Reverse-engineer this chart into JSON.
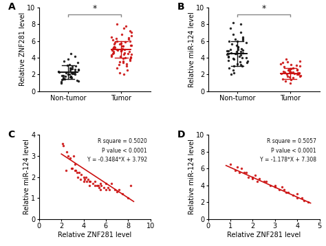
{
  "panel_A": {
    "non_tumor_y": [
      1.0,
      1.1,
      1.2,
      1.3,
      1.4,
      1.5,
      1.5,
      1.6,
      1.6,
      1.7,
      1.7,
      1.8,
      1.8,
      1.9,
      1.9,
      2.0,
      2.0,
      2.0,
      2.1,
      2.1,
      2.2,
      2.2,
      2.3,
      2.3,
      2.4,
      2.4,
      2.5,
      2.5,
      2.6,
      2.6,
      2.7,
      2.7,
      2.8,
      2.9,
      3.0,
      3.1,
      3.2,
      3.4,
      3.6,
      3.8,
      4.2,
      4.5
    ],
    "non_tumor_mean": 2.3,
    "non_tumor_sd_low": 1.5,
    "non_tumor_sd_high": 3.1,
    "tumor_y": [
      2.0,
      2.2,
      2.5,
      2.8,
      3.0,
      3.2,
      3.3,
      3.4,
      3.5,
      3.6,
      3.7,
      3.8,
      3.9,
      4.0,
      4.0,
      4.1,
      4.2,
      4.2,
      4.3,
      4.4,
      4.4,
      4.5,
      4.5,
      4.6,
      4.6,
      4.7,
      4.7,
      4.8,
      4.8,
      4.9,
      4.9,
      5.0,
      5.0,
      5.0,
      5.1,
      5.1,
      5.2,
      5.2,
      5.3,
      5.4,
      5.4,
      5.5,
      5.5,
      5.6,
      5.6,
      5.7,
      5.8,
      5.9,
      6.0,
      6.0,
      6.1,
      6.2,
      6.3,
      6.4,
      6.5,
      6.6,
      6.8,
      7.0,
      7.2,
      7.5,
      7.8,
      8.0
    ],
    "tumor_mean": 5.0,
    "tumor_sd_low": 4.0,
    "tumor_sd_high": 6.0,
    "ylabel": "Relative ZNF281 level",
    "ylim": [
      0,
      10
    ],
    "yticks": [
      0,
      2,
      4,
      6,
      8,
      10
    ],
    "xtick_labels": [
      "Non-tumor",
      "Tumor"
    ],
    "sig_bar_y": 9.2,
    "label": "A"
  },
  "panel_B": {
    "non_tumor_y": [
      2.0,
      2.2,
      2.5,
      2.8,
      3.0,
      3.0,
      3.2,
      3.3,
      3.4,
      3.5,
      3.6,
      3.7,
      3.8,
      3.9,
      4.0,
      4.0,
      4.1,
      4.2,
      4.2,
      4.3,
      4.4,
      4.5,
      4.5,
      4.5,
      4.6,
      4.6,
      4.7,
      4.7,
      4.8,
      4.8,
      4.9,
      5.0,
      5.0,
      5.1,
      5.2,
      5.3,
      5.5,
      5.6,
      5.8,
      6.0,
      6.0,
      6.1,
      6.2,
      6.3,
      6.5,
      6.8,
      7.0,
      7.5,
      8.0,
      8.2
    ],
    "non_tumor_mean": 4.5,
    "non_tumor_sd_low": 3.0,
    "non_tumor_sd_high": 6.0,
    "tumor_y": [
      1.0,
      1.2,
      1.4,
      1.5,
      1.6,
      1.7,
      1.8,
      1.8,
      1.9,
      2.0,
      2.0,
      2.0,
      2.1,
      2.1,
      2.1,
      2.2,
      2.2,
      2.2,
      2.3,
      2.3,
      2.3,
      2.4,
      2.4,
      2.5,
      2.5,
      2.6,
      2.6,
      2.7,
      2.8,
      2.9,
      3.0,
      3.1,
      3.2,
      3.3,
      3.4,
      3.5,
      3.6,
      3.8
    ],
    "tumor_mean": 2.1,
    "tumor_sd_low": 1.5,
    "tumor_sd_high": 2.8,
    "ylabel": "Relative miR-124 level",
    "ylim": [
      0,
      10
    ],
    "yticks": [
      0,
      2,
      4,
      6,
      8,
      10
    ],
    "xtick_labels": [
      "Non-tumor",
      "Tumor"
    ],
    "sig_bar_y": 9.2,
    "label": "B"
  },
  "panel_C": {
    "x": [
      2.1,
      2.2,
      2.4,
      2.5,
      2.6,
      2.8,
      2.9,
      3.0,
      3.1,
      3.2,
      3.2,
      3.3,
      3.4,
      3.5,
      3.6,
      3.7,
      3.8,
      4.0,
      4.0,
      4.1,
      4.2,
      4.3,
      4.4,
      4.5,
      4.5,
      4.6,
      4.8,
      5.0,
      5.0,
      5.2,
      5.3,
      5.4,
      5.5,
      5.5,
      5.6,
      5.8,
      6.0,
      6.0,
      6.2,
      6.3,
      6.5,
      6.8,
      7.0,
      7.2,
      7.5,
      8.0,
      8.2
    ],
    "y": [
      3.6,
      3.5,
      2.3,
      3.2,
      3.0,
      2.9,
      2.4,
      2.4,
      3.0,
      2.6,
      2.3,
      2.3,
      2.2,
      2.0,
      2.2,
      1.9,
      2.1,
      1.8,
      2.0,
      1.9,
      2.0,
      1.8,
      1.9,
      1.6,
      1.8,
      1.8,
      1.7,
      1.6,
      1.8,
      1.6,
      1.6,
      1.5,
      1.4,
      1.7,
      1.6,
      1.5,
      1.4,
      1.7,
      1.5,
      1.4,
      1.7,
      1.4,
      1.3,
      1.4,
      1.2,
      1.0,
      1.6
    ],
    "xlabel": "Relative ZNF281 level",
    "ylabel": "Relative miR-124 level",
    "xlim": [
      0,
      10
    ],
    "ylim": [
      0,
      4
    ],
    "xticks": [
      0,
      2,
      4,
      6,
      8,
      10
    ],
    "yticks": [
      0,
      1,
      2,
      3,
      4
    ],
    "annotation": "R square = 0.5020\nP value < 0.0001\nY = -0.3484*X + 3.792",
    "slope": -0.3484,
    "intercept": 3.792,
    "line_xmin": 2.0,
    "line_xmax": 8.5,
    "label": "C"
  },
  "panel_D": {
    "x": [
      1.0,
      1.2,
      1.3,
      1.4,
      1.5,
      1.6,
      1.7,
      1.8,
      2.0,
      2.0,
      2.1,
      2.2,
      2.3,
      2.5,
      2.6,
      2.8,
      3.0,
      3.0,
      3.2,
      3.3,
      3.4,
      3.5,
      3.6,
      3.8,
      4.0,
      4.0,
      4.2,
      4.3,
      4.5
    ],
    "y": [
      6.5,
      5.8,
      6.2,
      5.5,
      6.0,
      5.5,
      5.5,
      5.0,
      5.0,
      4.8,
      5.2,
      4.5,
      4.8,
      4.5,
      4.5,
      4.0,
      4.0,
      3.8,
      3.5,
      3.8,
      3.5,
      3.2,
      3.2,
      2.8,
      2.5,
      3.0,
      2.5,
      2.2,
      2.0
    ],
    "xlabel": "Relative ZNF281 level",
    "ylabel": "Relative miR-124 level",
    "xlim": [
      0,
      5
    ],
    "ylim": [
      0,
      10
    ],
    "xticks": [
      0,
      1,
      2,
      3,
      4,
      5
    ],
    "yticks": [
      0,
      2,
      4,
      6,
      8,
      10
    ],
    "annotation": "R square = 0.5057\nP value < 0.0001\nY = -1.178*X + 7.308",
    "slope": -1.178,
    "intercept": 7.308,
    "line_xmin": 0.8,
    "line_xmax": 4.6,
    "label": "D"
  },
  "dot_color_black": "#111111",
  "dot_color_red": "#cc1111",
  "sig_bar_color": "#888888",
  "background_color": "#ffffff",
  "font_size": 7,
  "label_font_size": 10
}
